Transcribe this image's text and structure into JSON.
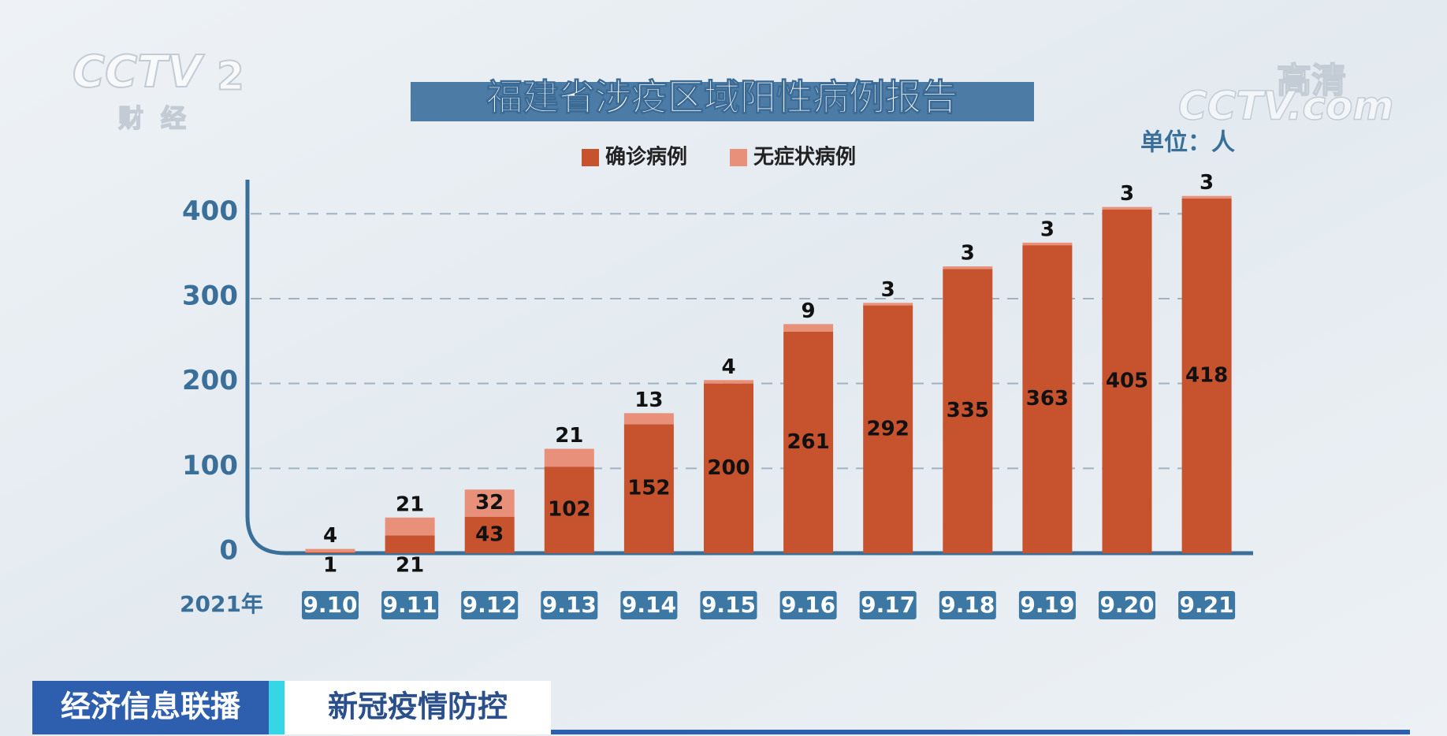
{
  "overlay": {
    "channel_logo": "CCTV",
    "channel_number": "2",
    "channel_name": "财经",
    "hd_mark": "高清",
    "site_logo": "CCTV.com",
    "program": "经济信息联播",
    "topic": "新冠疫情防控"
  },
  "chart_data": {
    "type": "stacked_bar",
    "title": "福建省涉疫区域阳性病例报告",
    "unit_label": "单位：人",
    "x_label": "2021年",
    "categories": [
      "9.10",
      "9.11",
      "9.12",
      "9.13",
      "9.14",
      "9.15",
      "9.16",
      "9.17",
      "9.18",
      "9.19",
      "9.20",
      "9.21"
    ],
    "series": [
      {
        "name": "确诊病例",
        "color": "#c6532d",
        "values": [
          1,
          21,
          43,
          102,
          152,
          200,
          261,
          292,
          335,
          363,
          405,
          418
        ]
      },
      {
        "name": "无症状病例",
        "color": "#e8907a",
        "values": [
          4,
          21,
          32,
          21,
          13,
          4,
          9,
          3,
          3,
          3,
          3,
          3
        ]
      }
    ],
    "ylim": [
      0,
      430
    ],
    "yticks": [
      0,
      100,
      200,
      300,
      400
    ],
    "grid": true
  }
}
